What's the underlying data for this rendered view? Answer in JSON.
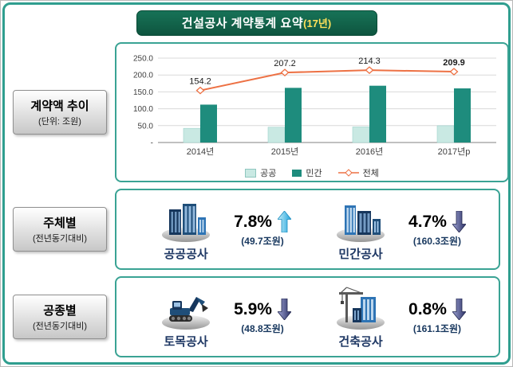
{
  "title": {
    "main": "건설공사 계약통계 요약",
    "suffix": "(17년)"
  },
  "sections": [
    {
      "label": "계약액 추이",
      "sublabel": "(단위: 조원)"
    },
    {
      "label": "주체별",
      "sublabel": "(전년동기대비)",
      "items": [
        {
          "name": "공공공사",
          "percent": "7.8%",
          "direction": "up",
          "value": "(49.7조원)",
          "icon": "public-construction-icon"
        },
        {
          "name": "민간공사",
          "percent": "4.7%",
          "direction": "down",
          "value": "(160.3조원)",
          "icon": "private-construction-icon"
        }
      ]
    },
    {
      "label": "공종별",
      "sublabel": "(전년동기대비)",
      "items": [
        {
          "name": "토목공사",
          "percent": "5.9%",
          "direction": "down",
          "value": "(48.8조원)",
          "icon": "civil-works-icon"
        },
        {
          "name": "건축공사",
          "percent": "0.8%",
          "direction": "down",
          "value": "(161.1조원)",
          "icon": "building-works-icon"
        }
      ]
    }
  ],
  "chart_data": {
    "type": "bar",
    "title": "계약액 추이",
    "categories": [
      "2014년",
      "2015년",
      "2016년",
      "2017년p"
    ],
    "series": [
      {
        "name": "공공",
        "type": "bar",
        "color": "#c9e9e3",
        "values": [
          42.0,
          45.3,
          46.1,
          49.7
        ]
      },
      {
        "name": "민간",
        "type": "bar",
        "color": "#1e8c7d",
        "values": [
          112.2,
          161.9,
          168.2,
          160.3
        ]
      },
      {
        "name": "전체",
        "type": "line",
        "color": "#ed7144",
        "values": [
          154.2,
          207.2,
          214.3,
          209.9
        ]
      }
    ],
    "line_labels": [
      "154.2",
      "207.2",
      "214.3",
      "209.9"
    ],
    "ylim": [
      0,
      250
    ],
    "yticks": [
      "250.0",
      "200.0",
      "150.0",
      "100.0",
      "50.0",
      "-"
    ],
    "grid": true,
    "legend_position": "bottom"
  },
  "colors": {
    "frame_teal": "#2f9e8f",
    "title_bg": "#0f5e46",
    "title_suffix": "#ffe05a",
    "name_navy": "#1f3864",
    "up_arrow": "#1fa2da",
    "down_arrow": "#2a2f63"
  }
}
